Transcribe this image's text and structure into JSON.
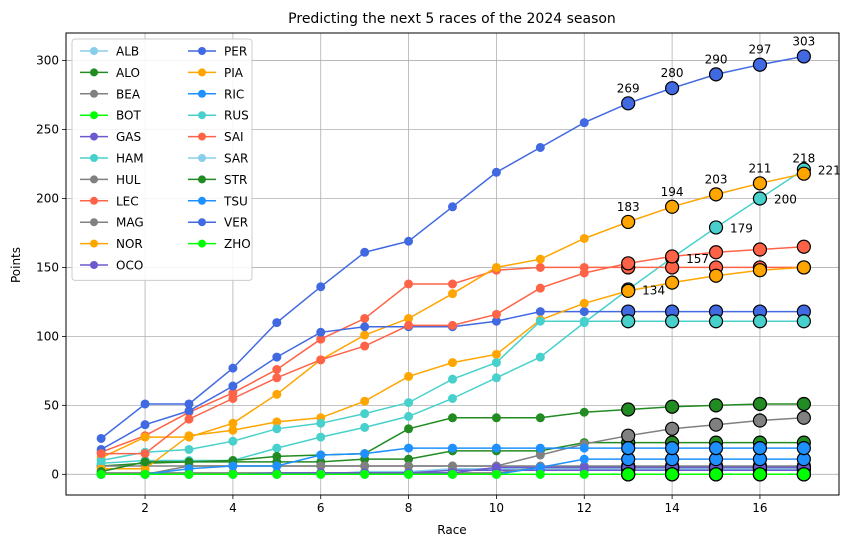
{
  "chart_data": {
    "type": "line",
    "title": "Predicting the next 5 races of the 2024 season",
    "xlabel": "Race",
    "ylabel": "Points",
    "xlim": [
      0.2,
      17.8
    ],
    "ylim": [
      -15,
      320
    ],
    "xticks": [
      2,
      4,
      6,
      8,
      10,
      12,
      14,
      16
    ],
    "yticks": [
      0,
      50,
      100,
      150,
      200,
      250,
      300
    ],
    "grid": true,
    "legend_position": "upper left",
    "legend_columns": 2,
    "observed_races": [
      1,
      2,
      3,
      4,
      5,
      6,
      7,
      8,
      9,
      10,
      11,
      12
    ],
    "predicted_races": [
      13,
      14,
      15,
      16,
      17
    ],
    "series": [
      {
        "name": "ALB",
        "color": "#87ceeb",
        "observed": [
          0,
          0,
          0,
          0,
          0,
          0,
          2,
          2,
          4,
          4,
          4,
          4
        ],
        "predicted": [
          4,
          4,
          4,
          4,
          4
        ]
      },
      {
        "name": "ALO",
        "color": "#228b22",
        "observed": [
          6,
          8,
          9,
          9,
          9,
          9,
          11,
          11,
          17,
          17,
          17,
          23
        ],
        "predicted": [
          23,
          23,
          23,
          23,
          23
        ]
      },
      {
        "name": "BEA",
        "color": "#808080",
        "observed": [
          6,
          6,
          6,
          6,
          6,
          6,
          6,
          6,
          6,
          6,
          6,
          6
        ],
        "predicted": [
          6,
          6,
          6,
          6,
          6
        ]
      },
      {
        "name": "BOT",
        "color": "#00ff00",
        "observed": [
          0,
          0,
          0,
          0,
          0,
          0,
          0,
          0,
          0,
          0,
          0,
          0
        ],
        "predicted": [
          0,
          0,
          0,
          0,
          0
        ]
      },
      {
        "name": "GAS",
        "color": "#6a5acd",
        "observed": [
          0,
          0,
          0,
          0,
          0,
          1,
          1,
          1,
          3,
          3,
          3,
          3
        ],
        "predicted": [
          3,
          3,
          3,
          3,
          3
        ]
      },
      {
        "name": "HAM",
        "color": "#48d1cc",
        "observed": [
          8,
          10,
          10,
          10,
          19,
          27,
          34,
          42,
          55,
          70,
          85,
          110
        ],
        "predicted": [
          134,
          157,
          179,
          200,
          221
        ]
      },
      {
        "name": "HUL",
        "color": "#808080",
        "observed": [
          0,
          0,
          6,
          6,
          6,
          6,
          6,
          6,
          6,
          6,
          14,
          22
        ],
        "predicted": [
          28,
          33,
          36,
          39,
          41
        ]
      },
      {
        "name": "LEC",
        "color": "#ff6347",
        "observed": [
          16,
          28,
          45,
          59,
          76,
          98,
          113,
          138,
          138,
          148,
          150,
          150
        ],
        "predicted": [
          150,
          150,
          150,
          150,
          150
        ]
      },
      {
        "name": "MAG",
        "color": "#808080",
        "observed": [
          1,
          1,
          1,
          1,
          1,
          1,
          1,
          1,
          1,
          1,
          5,
          5
        ],
        "predicted": [
          5,
          5,
          5,
          5,
          5
        ]
      },
      {
        "name": "NOR",
        "color": "#ffa500",
        "observed": [
          12,
          27,
          27,
          37,
          58,
          83,
          101,
          113,
          131,
          150,
          156,
          171
        ],
        "predicted": [
          183,
          194,
          203,
          211,
          218
        ]
      },
      {
        "name": "OCO",
        "color": "#6a5acd",
        "observed": [
          0,
          0,
          0,
          0,
          1,
          1,
          1,
          1,
          1,
          5,
          5,
          5
        ],
        "predicted": [
          5,
          5,
          5,
          5,
          5
        ]
      },
      {
        "name": "PER",
        "color": "#4169e1",
        "observed": [
          18,
          36,
          46,
          64,
          85,
          103,
          107,
          107,
          107,
          111,
          118,
          118
        ],
        "predicted": [
          118,
          118,
          118,
          118,
          118
        ]
      },
      {
        "name": "PIA",
        "color": "#ffa500",
        "observed": [
          4,
          4,
          28,
          32,
          38,
          41,
          53,
          71,
          81,
          87,
          112,
          124
        ],
        "predicted": [
          133,
          139,
          144,
          148,
          150
        ]
      },
      {
        "name": "RIC",
        "color": "#1e90ff",
        "observed": [
          0,
          0,
          0,
          0,
          0,
          0,
          0,
          0,
          0,
          0,
          5,
          11
        ],
        "predicted": [
          11,
          11,
          11,
          11,
          11
        ]
      },
      {
        "name": "RUS",
        "color": "#48d1cc",
        "observed": [
          10,
          16,
          18,
          24,
          33,
          37,
          44,
          52,
          69,
          81,
          111,
          111
        ],
        "predicted": [
          111,
          111,
          111,
          111,
          111
        ]
      },
      {
        "name": "SAI",
        "color": "#ff6347",
        "observed": [
          15,
          15,
          40,
          55,
          70,
          83,
          93,
          108,
          108,
          116,
          135,
          146
        ],
        "predicted": [
          153,
          158,
          161,
          163,
          165
        ]
      },
      {
        "name": "SAR",
        "color": "#87ceeb",
        "observed": [
          0,
          0,
          0,
          0,
          0,
          0,
          0,
          0,
          0,
          0,
          0,
          0
        ],
        "predicted": [
          0,
          0,
          0,
          0,
          0
        ]
      },
      {
        "name": "STR",
        "color": "#228b22",
        "observed": [
          2,
          9,
          9,
          10,
          13,
          14,
          15,
          33,
          41,
          41,
          41,
          45
        ],
        "predicted": [
          47,
          49,
          50,
          51,
          51
        ]
      },
      {
        "name": "TSU",
        "color": "#1e90ff",
        "observed": [
          0,
          0,
          4,
          6,
          6,
          14,
          15,
          19,
          19,
          19,
          19,
          19
        ],
        "predicted": [
          19,
          19,
          19,
          19,
          19
        ]
      },
      {
        "name": "VER",
        "color": "#4169e1",
        "observed": [
          26,
          51,
          51,
          77,
          110,
          136,
          161,
          169,
          194,
          219,
          237,
          255
        ],
        "predicted": [
          269,
          280,
          290,
          297,
          303
        ]
      },
      {
        "name": "ZHO",
        "color": "#00ff00",
        "observed": [
          0,
          0,
          0,
          0,
          0,
          0,
          0,
          0,
          0,
          0,
          0,
          0
        ],
        "predicted": [
          0,
          0,
          0,
          0,
          0
        ]
      }
    ],
    "annotations": [
      {
        "series": "VER",
        "text": "269",
        "x": 13,
        "y": 269,
        "side": "above"
      },
      {
        "series": "VER",
        "text": "280",
        "x": 14,
        "y": 280,
        "side": "above"
      },
      {
        "series": "VER",
        "text": "290",
        "x": 15,
        "y": 290,
        "side": "above"
      },
      {
        "series": "VER",
        "text": "297",
        "x": 16,
        "y": 297,
        "side": "above"
      },
      {
        "series": "VER",
        "text": "303",
        "x": 17,
        "y": 303,
        "side": "above"
      },
      {
        "series": "NOR",
        "text": "183",
        "x": 13,
        "y": 183,
        "side": "above"
      },
      {
        "series": "NOR",
        "text": "194",
        "x": 14,
        "y": 194,
        "side": "above"
      },
      {
        "series": "NOR",
        "text": "203",
        "x": 15,
        "y": 203,
        "side": "above"
      },
      {
        "series": "NOR",
        "text": "211",
        "x": 16,
        "y": 211,
        "side": "above"
      },
      {
        "series": "NOR",
        "text": "218",
        "x": 17,
        "y": 218,
        "side": "above"
      },
      {
        "series": "HAM",
        "text": "134",
        "x": 13,
        "y": 134,
        "side": "right"
      },
      {
        "series": "HAM",
        "text": "157",
        "x": 14,
        "y": 157,
        "side": "right"
      },
      {
        "series": "HAM",
        "text": "179",
        "x": 15,
        "y": 179,
        "side": "right"
      },
      {
        "series": "HAM",
        "text": "200",
        "x": 16,
        "y": 200,
        "side": "right"
      },
      {
        "series": "HAM",
        "text": "221",
        "x": 17,
        "y": 221,
        "side": "right"
      }
    ]
  }
}
